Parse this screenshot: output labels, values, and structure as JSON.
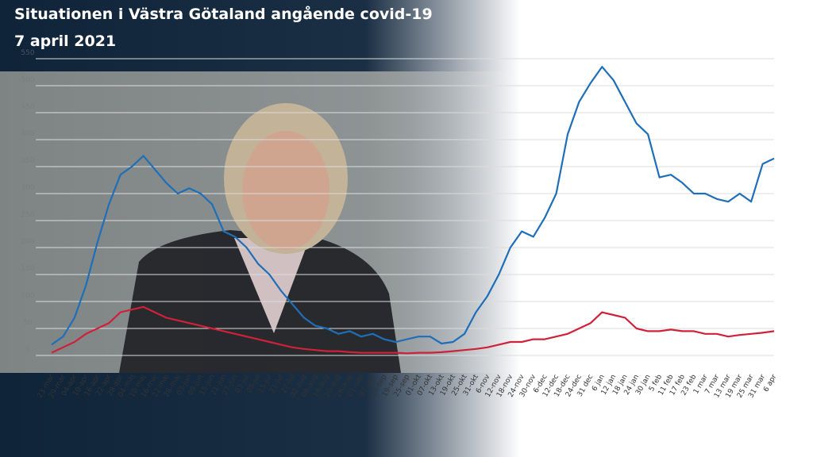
{
  "chart_data": {
    "type": "line",
    "title": "Situationen i Västra Götaland angående covid-19",
    "subtitle": "7 april 2021",
    "categories": [
      "23-mar",
      "29-mar",
      "04-apr",
      "10-apr",
      "16-apr",
      "22-apr",
      "28-apr",
      "04-maj",
      "10-maj",
      "16-maj",
      "22-maj",
      "28-maj",
      "03-jun",
      "09-jun",
      "15-jun",
      "21-jun",
      "27-jun",
      "03-jul",
      "09-jul",
      "15-jul",
      "21-jul",
      "27-jul",
      "02-aug",
      "08-aug",
      "14-aug",
      "20-aug",
      "26-aug",
      "01-sep",
      "07-sep",
      "13-sep",
      "19-sep",
      "25-sep",
      "01-okt",
      "07-okt",
      "13-okt",
      "19-okt",
      "25-okt",
      "31-okt",
      "6-nov",
      "12-nov",
      "18-nov",
      "24-nov",
      "30-nov",
      "6-dec",
      "12-dec",
      "18-dec",
      "24-dec",
      "31 dec",
      "6 jan",
      "12 jan",
      "18 jan",
      "24 jan",
      "30 jan",
      "5 feb",
      "11 feb",
      "17 feb",
      "23 feb",
      "1 mar",
      "7 mar",
      "13 mar",
      "19 mar",
      "25 mar",
      "31 mar",
      "6 apr"
    ],
    "series": [
      {
        "color": "#1f6fb8",
        "values": [
          20,
          35,
          70,
          130,
          210,
          280,
          335,
          350,
          370,
          345,
          320,
          300,
          310,
          300,
          280,
          230,
          220,
          200,
          170,
          150,
          120,
          95,
          70,
          55,
          50,
          40,
          45,
          35,
          40,
          30,
          25,
          30,
          35,
          35,
          22,
          25,
          40,
          80,
          110,
          150,
          200,
          230,
          220,
          255,
          300,
          410,
          470,
          505,
          535,
          510,
          470,
          430,
          410,
          330,
          335,
          320,
          300,
          300,
          290,
          285,
          300,
          285,
          355,
          365
        ]
      },
      {
        "color": "#d0213a",
        "values": [
          5,
          15,
          25,
          40,
          50,
          60,
          80,
          85,
          90,
          80,
          70,
          65,
          60,
          55,
          50,
          45,
          40,
          35,
          30,
          25,
          20,
          15,
          12,
          10,
          8,
          8,
          6,
          5,
          5,
          5,
          5,
          4,
          5,
          5,
          6,
          8,
          10,
          12,
          15,
          20,
          25,
          25,
          30,
          30,
          35,
          40,
          50,
          60,
          80,
          75,
          70,
          50,
          45,
          45,
          48,
          45,
          45,
          40,
          40,
          35,
          38,
          40,
          42,
          45
        ]
      }
    ],
    "ylim": [
      0,
      550
    ],
    "yticks": [
      0,
      50,
      100,
      150,
      200,
      250,
      300,
      350,
      400,
      450,
      500,
      550
    ],
    "grid": true
  }
}
